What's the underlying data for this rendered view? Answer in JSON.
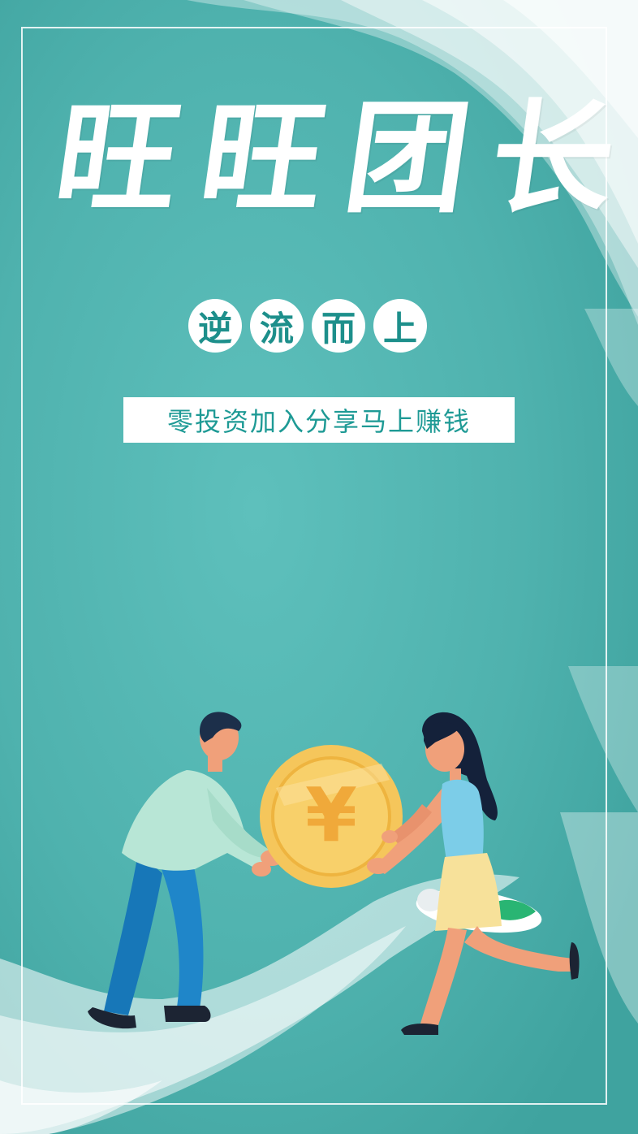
{
  "poster": {
    "title_chars": [
      "旺",
      "旺",
      "团",
      "长"
    ],
    "badges": [
      "逆",
      "流",
      "而",
      "上"
    ],
    "tagline": "零投资加入分享马上赚钱",
    "coin_symbol": "¥"
  },
  "colors": {
    "sea": "#54b7b4",
    "accent_teal": "#1e9a95",
    "coin_gold": "#f5c65b",
    "man_shirt": "#b8e6d6",
    "man_pants": "#1f86c9",
    "woman_top": "#7ccde8",
    "woman_skirt": "#f7e19a",
    "skin": "#f0a07a"
  },
  "icons": [
    "coin-yuan-icon",
    "surfboard-icon"
  ]
}
